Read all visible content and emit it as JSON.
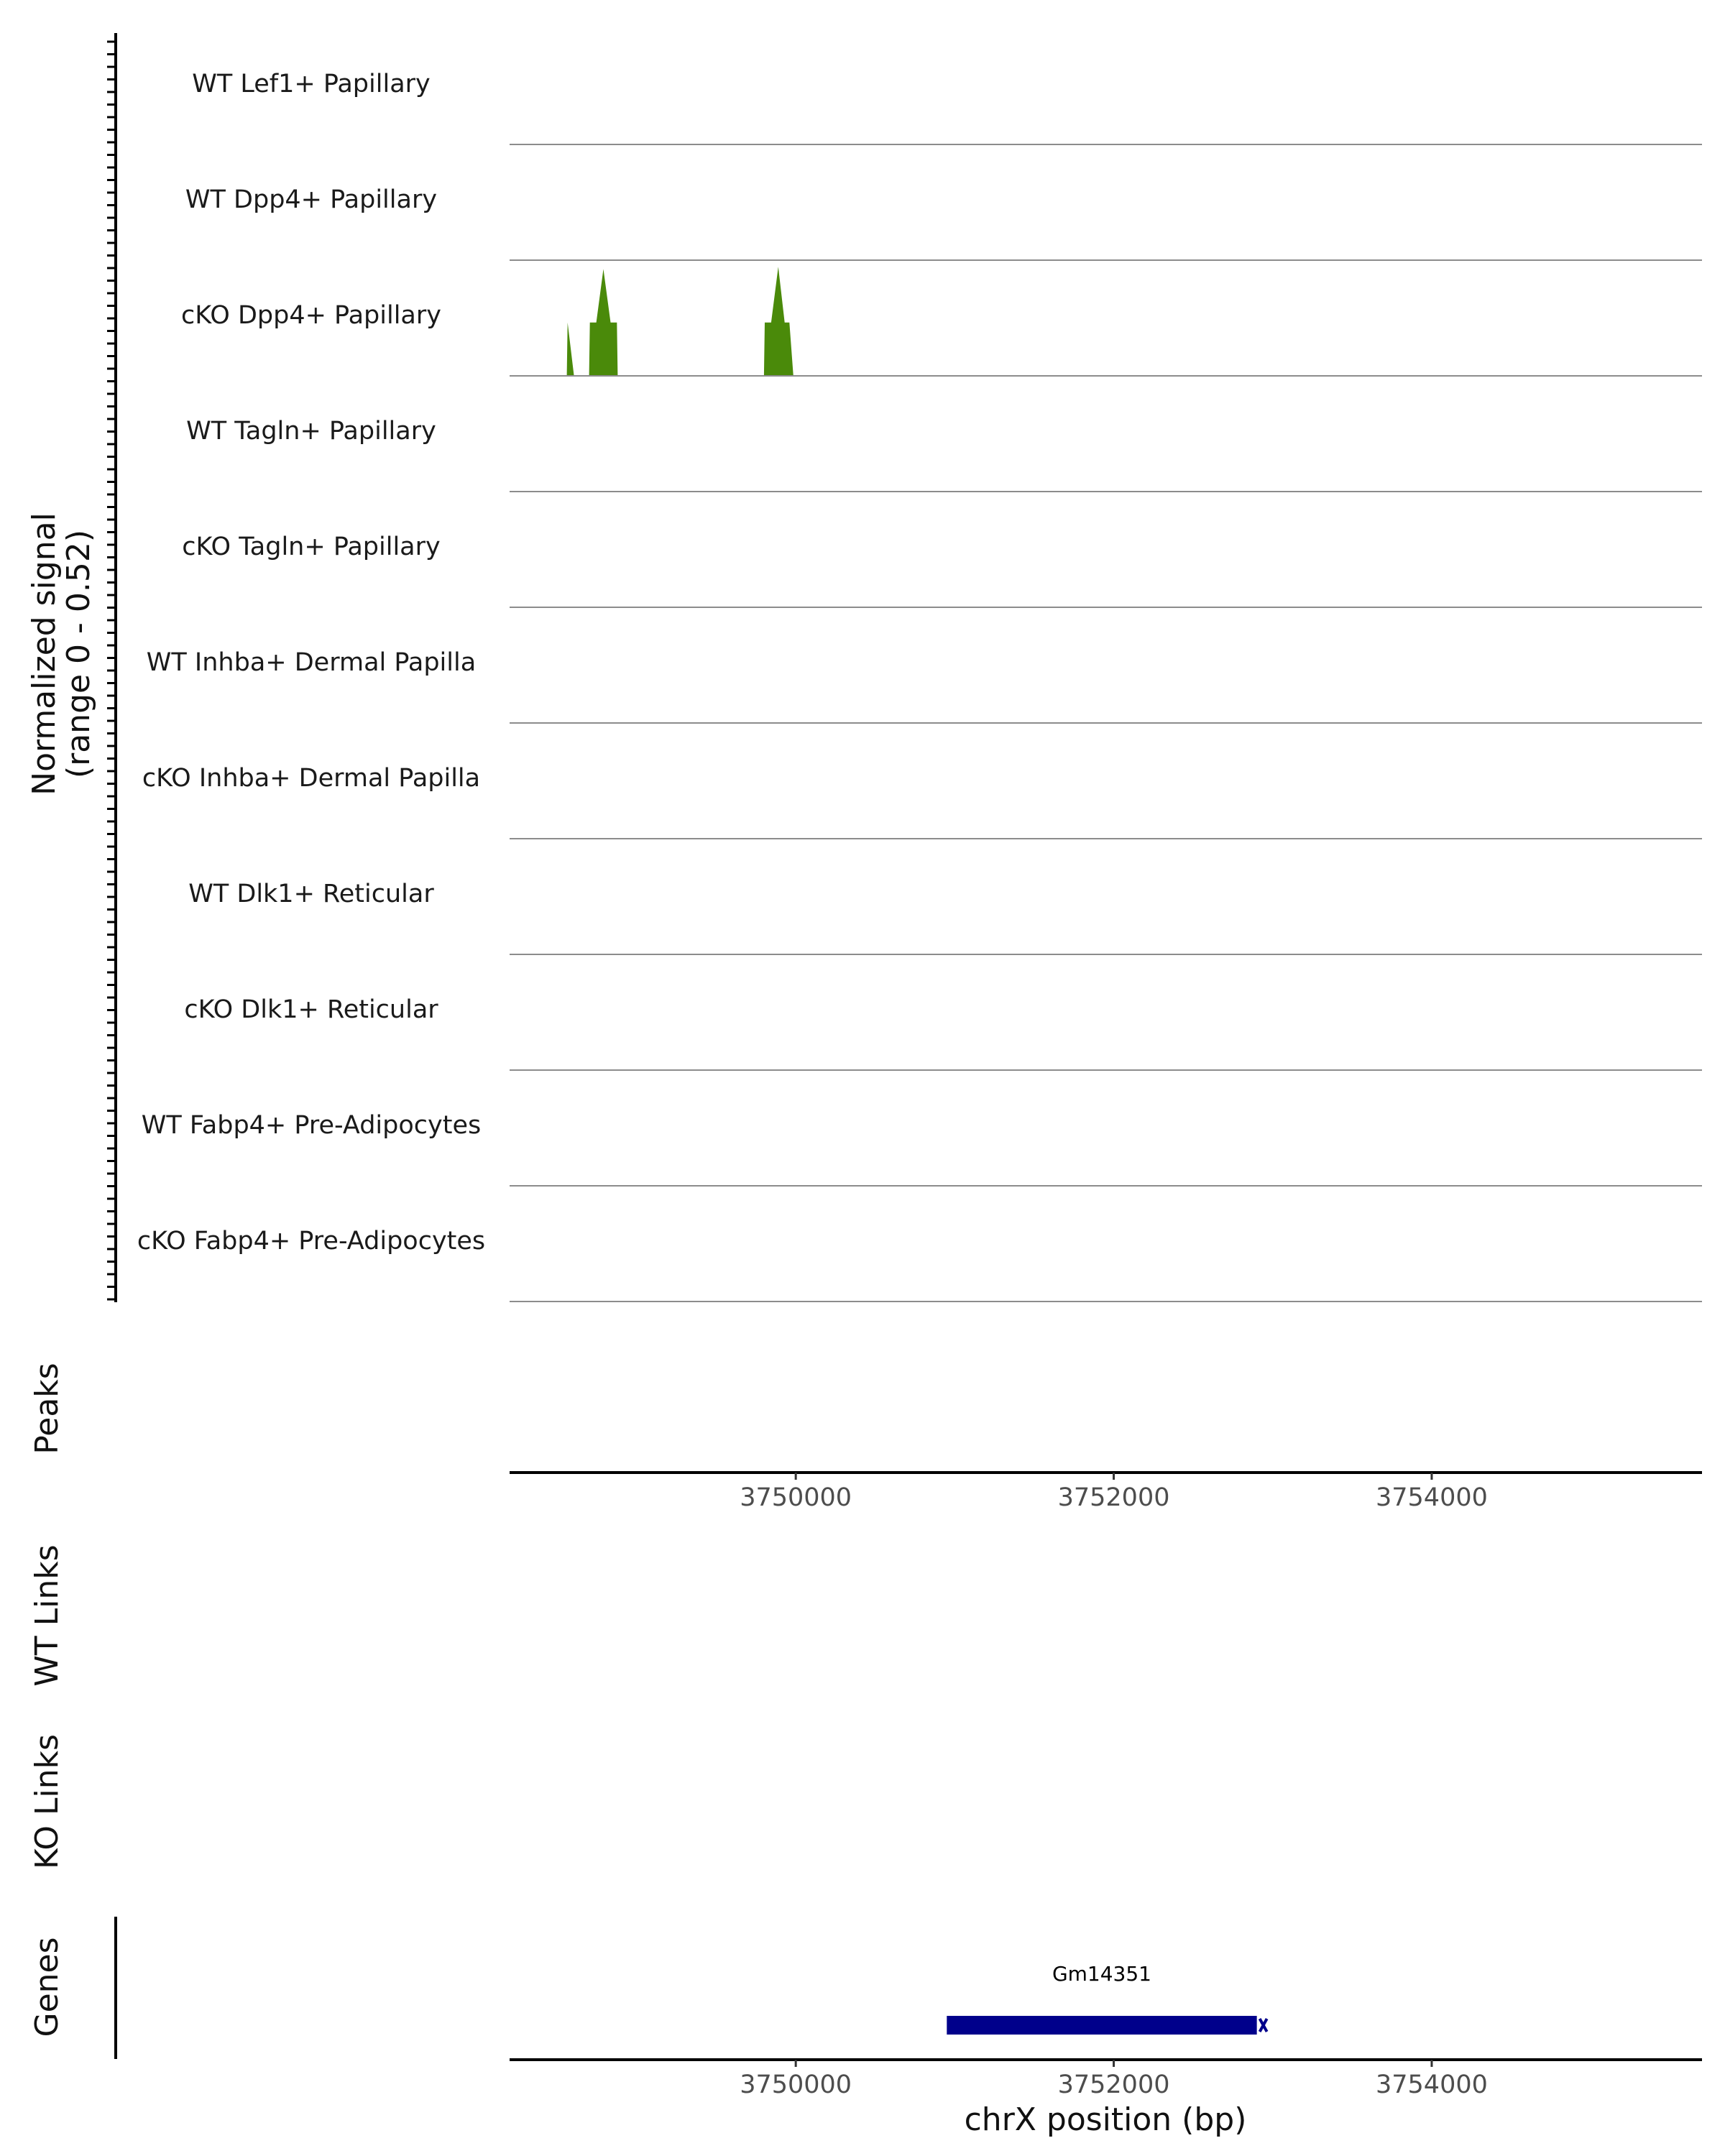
{
  "chart_data": {
    "type": "area",
    "title": "",
    "signal": {
      "ylabel_line1": "Normalized signal",
      "ylabel_line2": "(range 0 - 0.52)",
      "ylim": [
        0,
        0.52
      ],
      "xlim": [
        3748200,
        3755700
      ],
      "color": "#4a8a0a",
      "tracks": [
        {
          "name": "WT Lef1+ Papillary",
          "points": []
        },
        {
          "name": "WT Dpp4+ Papillary",
          "points": []
        },
        {
          "name": "cKO Dpp4+ Papillary",
          "points": [
            [
              3748560,
              0
            ],
            [
              3748565,
              0.24
            ],
            [
              3748605,
              0
            ],
            [
              3748700,
              0
            ],
            [
              3748705,
              0.24
            ],
            [
              3748745,
              0.24
            ],
            [
              3748790,
              0.48
            ],
            [
              3748835,
              0.24
            ],
            [
              3748875,
              0.24
            ],
            [
              3748880,
              0
            ],
            [
              3749800,
              0
            ],
            [
              3749805,
              0.24
            ],
            [
              3749845,
              0.24
            ],
            [
              3749890,
              0.49
            ],
            [
              3749930,
              0.24
            ],
            [
              3749960,
              0.24
            ],
            [
              3749985,
              0
            ]
          ]
        },
        {
          "name": "WT Tagln+ Papillary",
          "points": []
        },
        {
          "name": "cKO Tagln+ Papillary",
          "points": []
        },
        {
          "name": "WT Inhba+ Dermal Papilla",
          "points": []
        },
        {
          "name": "cKO Inhba+ Dermal Papilla",
          "points": []
        },
        {
          "name": "WT Dlk1+ Reticular",
          "points": []
        },
        {
          "name": "cKO Dlk1+ Reticular",
          "points": []
        },
        {
          "name": "WT Fabp4+ Pre-Adipocytes",
          "points": []
        },
        {
          "name": "cKO Fabp4+ Pre-Adipocytes",
          "points": []
        }
      ]
    },
    "panels": {
      "peaks_label": "Peaks",
      "wt_links_label": "WT Links",
      "ko_links_label": "KO Links",
      "genes_label": "Genes"
    },
    "x_axis": {
      "ticks": [
        3750000,
        3752000,
        3754000
      ],
      "tick_labels": [
        "3750000",
        "3752000",
        "3754000"
      ],
      "xlabel": "chrX position (bp)"
    },
    "genes": [
      {
        "name": "Gm14351",
        "start": 3750950,
        "end": 3752900,
        "strand": "-",
        "color": "#00008b"
      }
    ]
  }
}
